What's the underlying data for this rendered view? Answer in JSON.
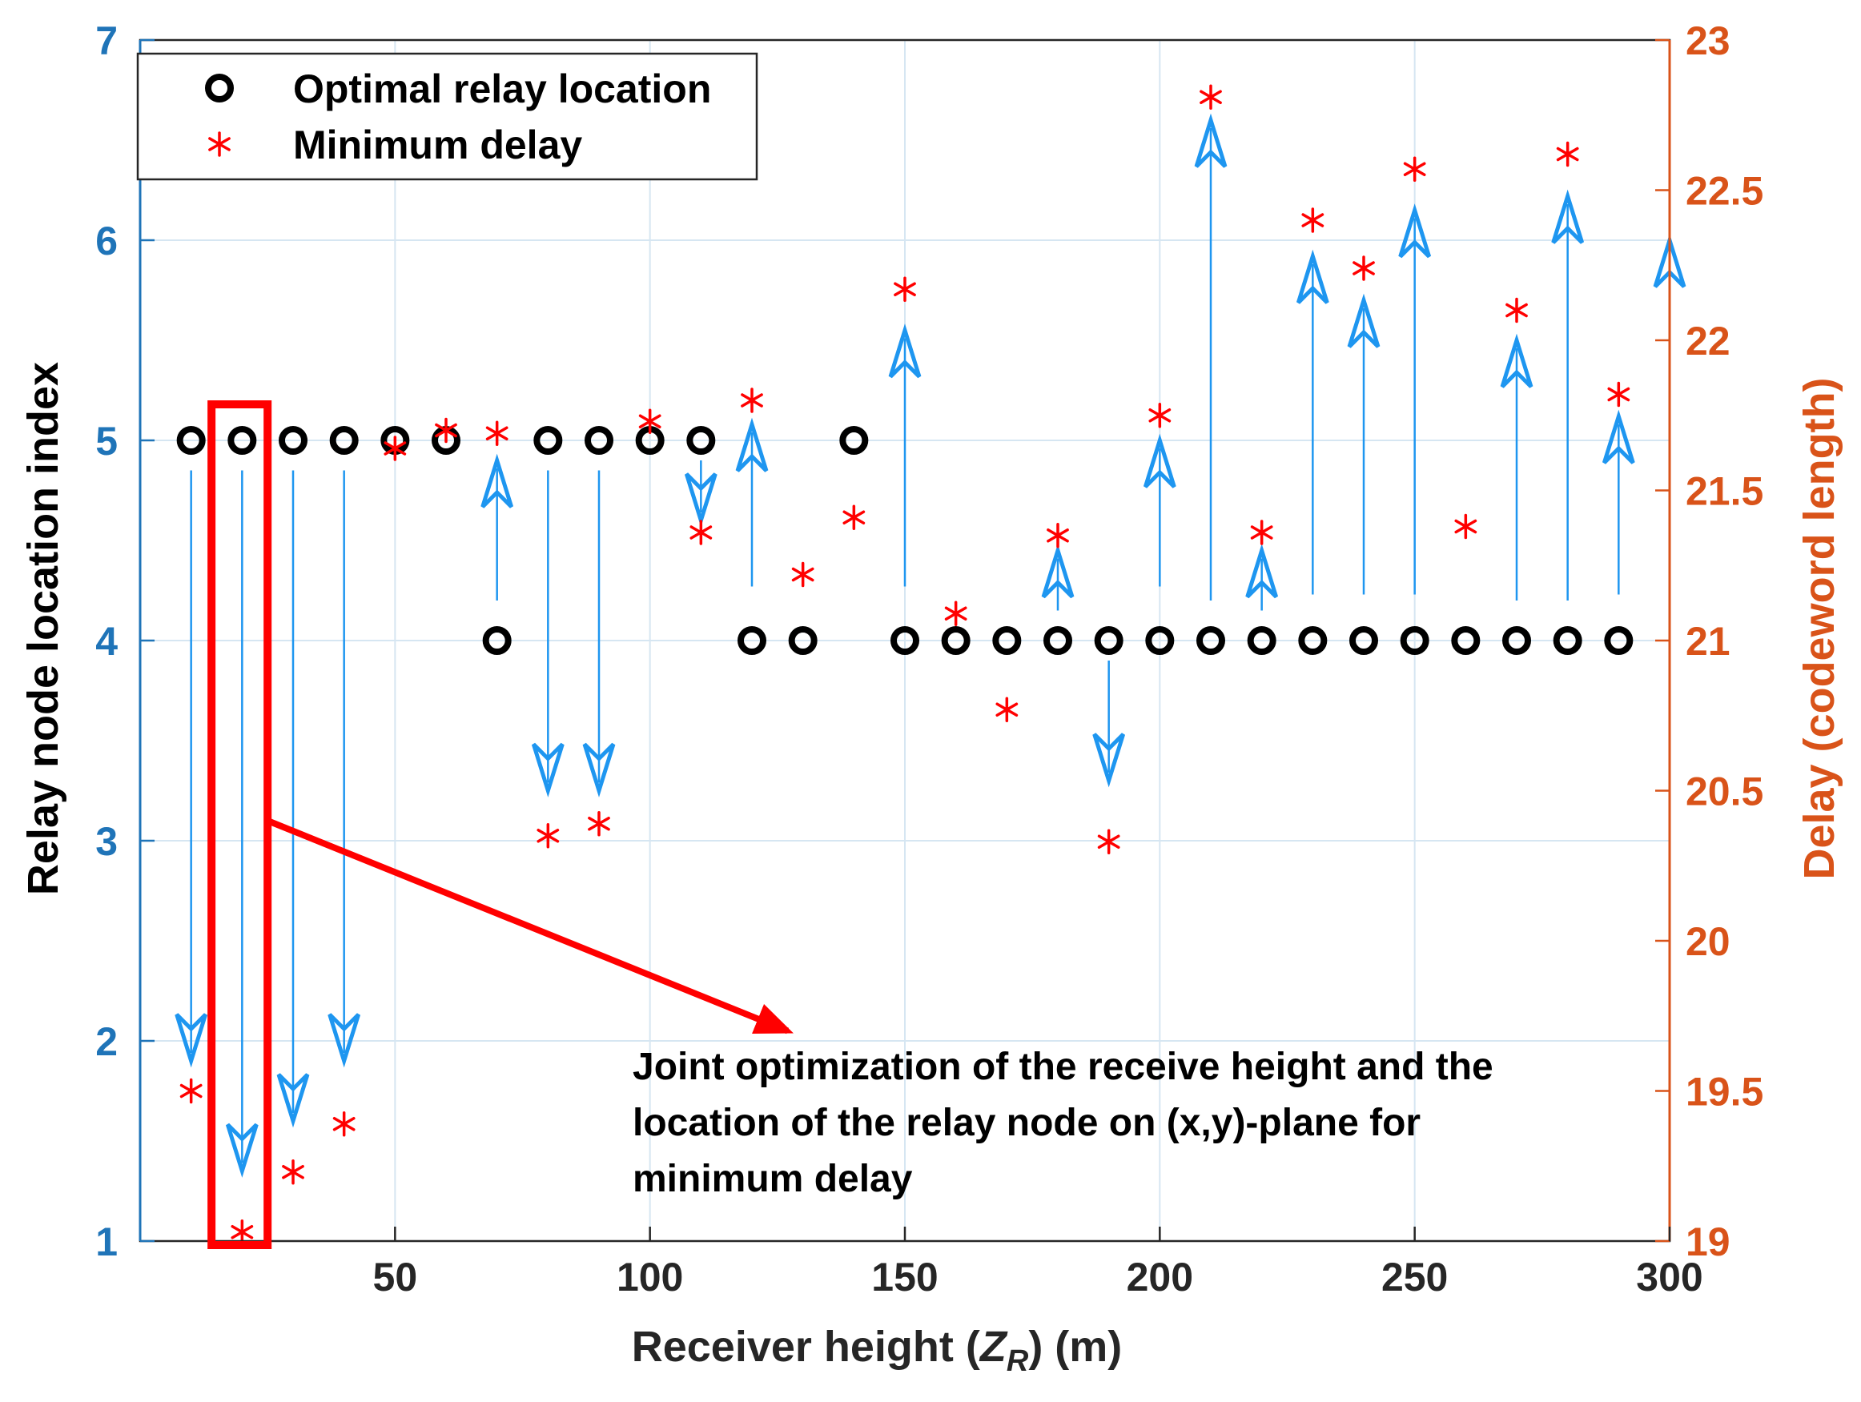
{
  "chart_data": {
    "type": "scatter",
    "title": "",
    "xlabel": {
      "prefix": "Receiver height (",
      "var": "Z",
      "sub": "R",
      "suffix": ") (m)"
    },
    "ylabel_left": "Relay node location index",
    "ylabel_right": "Delay (codeword length)",
    "xlim": [
      0,
      300
    ],
    "ylim_left": [
      1,
      7
    ],
    "ylim_right": [
      19,
      23
    ],
    "x_ticks": [
      50,
      100,
      150,
      200,
      250,
      300
    ],
    "y_left_ticks": [
      1,
      2,
      3,
      4,
      5,
      6,
      7
    ],
    "y_right_ticks": [
      "19",
      "19.5",
      "20",
      "20.5",
      "21",
      "21.5",
      "22",
      "22.5",
      "23"
    ],
    "grid": true,
    "colors": {
      "left_axis": "#1f74b8",
      "right_axis": "#d95319",
      "arrow": "#1e96f0",
      "star": "#ff0000",
      "circle": "#000000",
      "box": "#ff0000",
      "grid": "#d6e6f2"
    },
    "legend": {
      "position": "top-left",
      "entries": [
        {
          "label": "Optimal relay location",
          "marker": "circle"
        },
        {
          "label": "Minimum delay",
          "marker": "asterisk"
        }
      ]
    },
    "series": [
      {
        "name": "Optimal relay location",
        "axis": "left",
        "x": [
          10,
          20,
          30,
          40,
          50,
          60,
          70,
          80,
          90,
          100,
          110,
          120,
          130,
          140,
          150,
          160,
          170,
          180,
          190,
          200,
          210,
          220,
          230,
          240,
          250,
          260,
          270,
          280,
          290
        ],
        "y": [
          5,
          5,
          5,
          5,
          5,
          5,
          4,
          5,
          5,
          5,
          5,
          4,
          4,
          5,
          4,
          4,
          4,
          4,
          4,
          4,
          4,
          4,
          4,
          4,
          4,
          4,
          4,
          4,
          4
        ]
      },
      {
        "name": "Minimum delay",
        "axis": "right",
        "x": [
          10,
          20,
          30,
          40,
          50,
          60,
          70,
          80,
          90,
          100,
          110,
          120,
          130,
          140,
          150,
          160,
          170,
          180,
          190,
          200,
          210,
          220,
          230,
          240,
          250,
          260,
          270,
          280,
          290
        ],
        "y": [
          19.5,
          19.03,
          19.23,
          19.39,
          21.64,
          21.7,
          21.69,
          20.35,
          20.39,
          21.73,
          21.36,
          21.8,
          21.22,
          21.41,
          22.17,
          21.09,
          20.77,
          21.35,
          20.33,
          21.75,
          22.81,
          21.36,
          22.4,
          22.24,
          22.57,
          21.38,
          22.1,
          22.62,
          21.82
        ]
      }
    ],
    "arrows": [
      {
        "x": 10,
        "from": 4.85,
        "to": 1.9
      },
      {
        "x": 20,
        "from": 4.85,
        "to": 1.35
      },
      {
        "x": 30,
        "from": 4.85,
        "to": 1.6
      },
      {
        "x": 40,
        "from": 4.85,
        "to": 1.9
      },
      {
        "x": 70,
        "from": 4.2,
        "to": 4.9
      },
      {
        "x": 80,
        "from": 4.85,
        "to": 3.25
      },
      {
        "x": 90,
        "from": 4.85,
        "to": 3.25
      },
      {
        "x": 110,
        "from": 4.9,
        "to": 4.6
      },
      {
        "x": 120,
        "from": 4.27,
        "to": 5.08
      },
      {
        "x": 150,
        "from": 4.27,
        "to": 5.55
      },
      {
        "x": 180,
        "from": 4.15,
        "to": 4.45
      },
      {
        "x": 190,
        "from": 3.9,
        "to": 3.3
      },
      {
        "x": 200,
        "from": 4.27,
        "to": 5.0
      },
      {
        "x": 210,
        "from": 4.2,
        "to": 6.6
      },
      {
        "x": 220,
        "from": 4.15,
        "to": 4.45
      },
      {
        "x": 230,
        "from": 4.23,
        "to": 5.92
      },
      {
        "x": 240,
        "from": 4.23,
        "to": 5.7
      },
      {
        "x": 250,
        "from": 4.23,
        "to": 6.15
      },
      {
        "x": 270,
        "from": 4.2,
        "to": 5.5
      },
      {
        "x": 280,
        "from": 4.2,
        "to": 6.22
      },
      {
        "x": 290,
        "from": 4.23,
        "to": 5.12
      },
      {
        "x": 300,
        "from": 4.2,
        "to": 6.0
      }
    ],
    "highlight": {
      "x_range": [
        14,
        25
      ],
      "y_range": [
        0.98,
        5.18
      ]
    },
    "annotation_arrow": {
      "from_x": 25,
      "from_y": 3.1,
      "to_x": 127,
      "to_y": 2.05
    },
    "annotation": {
      "lines": [
        "Joint optimization of the receive height and the",
        "location of the relay node on (x,y)-plane for",
        "minimum delay"
      ]
    }
  }
}
